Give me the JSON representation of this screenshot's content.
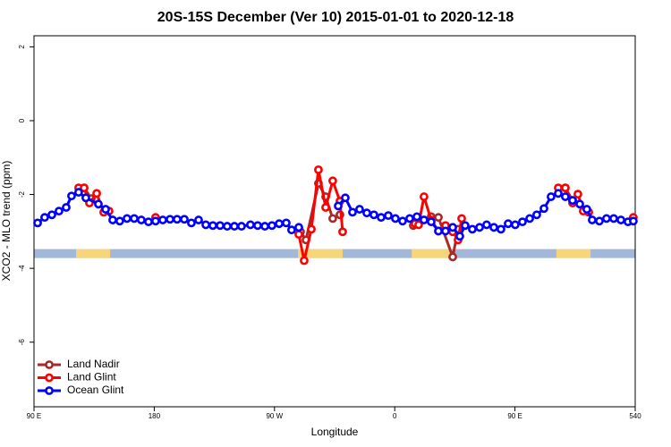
{
  "chart_data": {
    "type": "line",
    "title": "20S-15S December (Ver 10)   2015-01-01 to 2020-12-18",
    "xlabel": "Longitude",
    "ylabel": "XCO2 - MLO trend (ppm)",
    "xlim": [
      90,
      540
    ],
    "xticks": [
      {
        "value": 90,
        "label": "90 E"
      },
      180,
      {
        "value": 270,
        "label": "90 W"
      },
      {
        "value": 360,
        "label": "0"
      },
      {
        "value": 450,
        "label": "90 E"
      },
      540
    ],
    "ylim": [
      -7.75,
      2.3
    ],
    "yticks": [
      -6,
      -4,
      -2,
      0,
      2
    ],
    "legend": "lower left",
    "band": {
      "y": -3.6,
      "ocean_color": "#a3b8d8",
      "land_color": "#f7d57a",
      "land": [
        [
          121.5,
          147
        ],
        [
          287.6,
          321
        ],
        [
          372.7,
          402.8
        ],
        [
          481,
          506.6
        ]
      ]
    },
    "series": [
      {
        "name": "Land Nadir",
        "color": "#a52a2a",
        "x": [
          127.5,
          132.9,
          null,
          289.5,
          293.6,
          302.9,
          308.3,
          313.6,
          319,
          null,
          373.9,
          379.3,
          387.3,
          392.7,
          403.4,
          407.4,
          null,
          487.7,
          493.1
        ],
        "values": [
          -1.82,
          -2.11,
          null,
          -3.01,
          -3.23,
          -1.7,
          -2.06,
          -2.65,
          -2.55,
          null,
          -2.84,
          -2.69,
          -2.6,
          -2.62,
          -3.69,
          -2.94,
          null,
          -1.82,
          -2.16
        ]
      },
      {
        "name": "Land Glint",
        "color": "#ff0000",
        "x": [
          123.4,
          127.5,
          131.5,
          136.9,
          142.2,
          146.2,
          null,
          181,
          null,
          288.2,
          292.2,
          297.6,
          302.9,
          308.3,
          313.6,
          319,
          321,
          null,
          375.2,
          377.9,
          381.9,
          387.3,
          392.7,
          398,
          403.4,
          407.4,
          410.1,
          null,
          482.4,
          487.7,
          493.1,
          497.1,
          501.1,
          505.2,
          null,
          538.6
        ],
        "values": [
          -1.82,
          -1.82,
          -2.23,
          -1.97,
          -2.48,
          -2.45,
          null,
          -2.62,
          null,
          -3.08,
          -3.79,
          -2.94,
          -1.33,
          -2.35,
          -1.63,
          -2.18,
          -3.01,
          null,
          -2.79,
          -2.82,
          -2.06,
          -2.69,
          -2.99,
          -2.84,
          -3.01,
          -3.23,
          -2.65,
          null,
          -1.82,
          -1.82,
          -2.23,
          -1.99,
          -2.45,
          -2.48,
          null,
          -2.62
        ]
      },
      {
        "name": "Ocean Glint",
        "color": "#0000ff",
        "x": [
          92.7,
          98,
          103.4,
          108.7,
          114.1,
          118.1,
          123.4,
          128.8,
          138.2,
          143.6,
          148.9,
          154.2,
          159.6,
          165,
          170.3,
          175.7,
          181,
          186.4,
          191.8,
          197.1,
          202.5,
          207.8,
          213.2,
          218.6,
          223.9,
          229.3,
          234.6,
          240,
          245.3,
          252,
          257.4,
          262.8,
          268.1,
          273.5,
          278.8,
          282.8,
          288.2,
          null,
          317.7,
          323,
          328.4,
          333.7,
          339.1,
          344.4,
          349.8,
          355.2,
          360.5,
          365.9,
          371.2,
          376.6,
          381.9,
          387.3,
          392.7,
          398,
          403.4,
          408.7,
          412.7,
          418.1,
          423.5,
          428.8,
          434.2,
          439.5,
          444.9,
          450.2,
          455.6,
          461,
          466.3,
          471.7,
          477,
          482.4,
          487.7,
          493.1,
          498.5,
          503.8,
          507.8,
          513.2,
          518.5,
          523.9,
          529.3,
          534.6,
          538.6
        ],
        "values": [
          -2.77,
          -2.62,
          -2.55,
          -2.45,
          -2.35,
          -2.04,
          -1.94,
          -2.09,
          -2.26,
          -2.4,
          -2.69,
          -2.72,
          -2.65,
          -2.65,
          -2.69,
          -2.74,
          -2.72,
          -2.69,
          -2.67,
          -2.67,
          -2.67,
          -2.77,
          -2.69,
          -2.82,
          -2.84,
          -2.84,
          -2.86,
          -2.86,
          -2.86,
          -2.82,
          -2.84,
          -2.86,
          -2.84,
          -2.79,
          -2.77,
          -2.96,
          -2.89,
          null,
          -2.31,
          -2.09,
          -2.48,
          -2.4,
          -2.5,
          -2.55,
          -2.62,
          -2.57,
          -2.65,
          -2.72,
          -2.65,
          -2.6,
          -2.69,
          -2.74,
          -2.99,
          -2.99,
          -2.89,
          -3.13,
          -2.84,
          -2.94,
          -2.89,
          -2.82,
          -2.89,
          -2.94,
          -2.79,
          -2.82,
          -2.74,
          -2.65,
          -2.55,
          -2.38,
          -2.06,
          -1.97,
          -2.06,
          -2.16,
          -2.26,
          -2.4,
          -2.69,
          -2.72,
          -2.65,
          -2.65,
          -2.69,
          -2.74,
          -2.72
        ]
      }
    ]
  }
}
